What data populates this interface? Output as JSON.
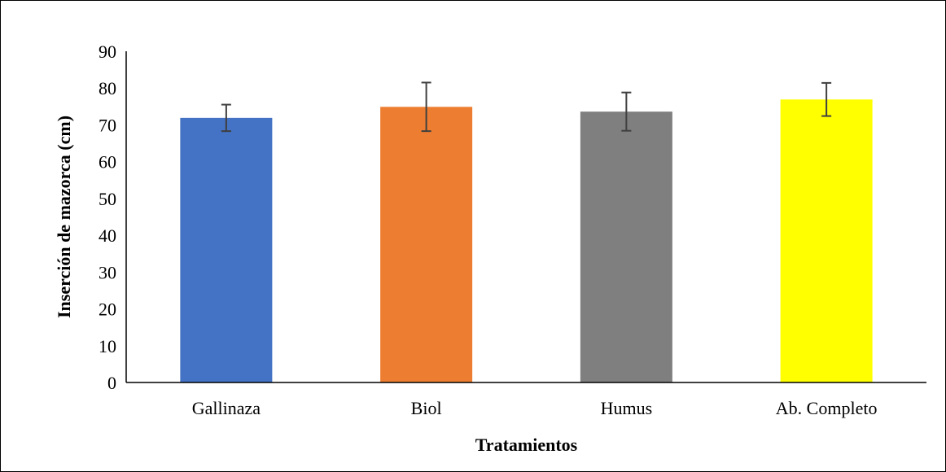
{
  "chart_data": {
    "type": "bar",
    "title": "",
    "xlabel": "Tratamientos",
    "ylabel": "Inserción de mazorca (cm)",
    "categories": [
      "Gallinaza",
      "Biol",
      "Humus",
      "Ab. Completo"
    ],
    "values": [
      71.9,
      74.9,
      73.6,
      76.9
    ],
    "error": [
      3.6,
      6.6,
      5.2,
      4.5
    ],
    "colors": [
      "#4472c4",
      "#ed7d31",
      "#7f7f7f",
      "#ffff00"
    ],
    "error_color": "#3f3f3f",
    "ylim": [
      0,
      90
    ],
    "yticks": [
      0,
      10,
      20,
      30,
      40,
      50,
      60,
      70,
      80,
      90
    ],
    "grid": false,
    "legend": "none"
  }
}
